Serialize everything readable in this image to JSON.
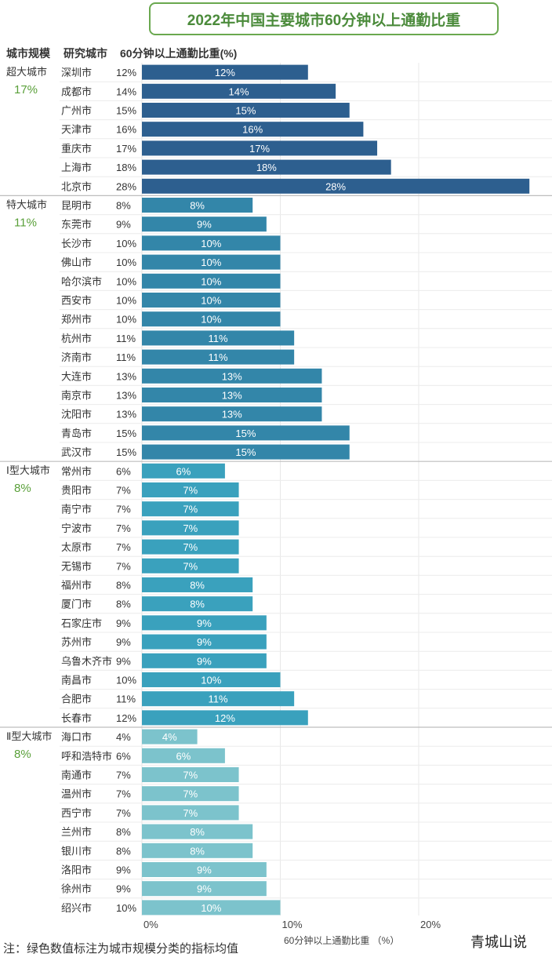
{
  "title": "2022年中国主要城市60分钟以上通勤比重",
  "headers": {
    "category": "城市规模",
    "city": "研究城市",
    "value": "60分钟以上通勤比重(%)"
  },
  "footnote": "注：绿色数值标注为城市规模分类的指标均值",
  "watermark": "青城山说",
  "colors": {
    "title_green": "#4b8b3b",
    "average_green": "#5aa03a",
    "group_colors": [
      "#2d5f8f",
      "#3386a9",
      "#3aa1bd",
      "#7cc3cc"
    ]
  },
  "chart_data": {
    "type": "bar",
    "orientation": "horizontal",
    "xlabel": "60分钟以上通勤比重 （%）",
    "xlim": [
      0,
      30
    ],
    "xticks": [
      0,
      10,
      20
    ],
    "xtick_labels": [
      "0%",
      "10%",
      "20%"
    ],
    "groups": [
      {
        "name": "超大城市",
        "average": "17%",
        "cities": [
          "深圳市",
          "成都市",
          "广州市",
          "天津市",
          "重庆市",
          "上海市",
          "北京市"
        ],
        "values": [
          12,
          14,
          15,
          16,
          17,
          18,
          28
        ]
      },
      {
        "name": "特大城市",
        "average": "11%",
        "cities": [
          "昆明市",
          "东莞市",
          "长沙市",
          "佛山市",
          "哈尔滨市",
          "西安市",
          "郑州市",
          "杭州市",
          "济南市",
          "大连市",
          "南京市",
          "沈阳市",
          "青岛市",
          "武汉市"
        ],
        "values": [
          8,
          9,
          10,
          10,
          10,
          10,
          10,
          11,
          11,
          13,
          13,
          13,
          15,
          15
        ]
      },
      {
        "name": "Ⅰ型大城市",
        "average": "8%",
        "cities": [
          "常州市",
          "贵阳市",
          "南宁市",
          "宁波市",
          "太原市",
          "无锡市",
          "福州市",
          "厦门市",
          "石家庄市",
          "苏州市",
          "乌鲁木齐市",
          "南昌市",
          "合肥市",
          "长春市"
        ],
        "values": [
          6,
          7,
          7,
          7,
          7,
          7,
          8,
          8,
          9,
          9,
          9,
          10,
          11,
          12
        ]
      },
      {
        "name": "Ⅱ型大城市",
        "average": "8%",
        "cities": [
          "海口市",
          "呼和浩特市",
          "南通市",
          "温州市",
          "西宁市",
          "兰州市",
          "银川市",
          "洛阳市",
          "徐州市",
          "绍兴市"
        ],
        "values": [
          4,
          6,
          7,
          7,
          7,
          8,
          8,
          9,
          9,
          10
        ]
      }
    ]
  }
}
